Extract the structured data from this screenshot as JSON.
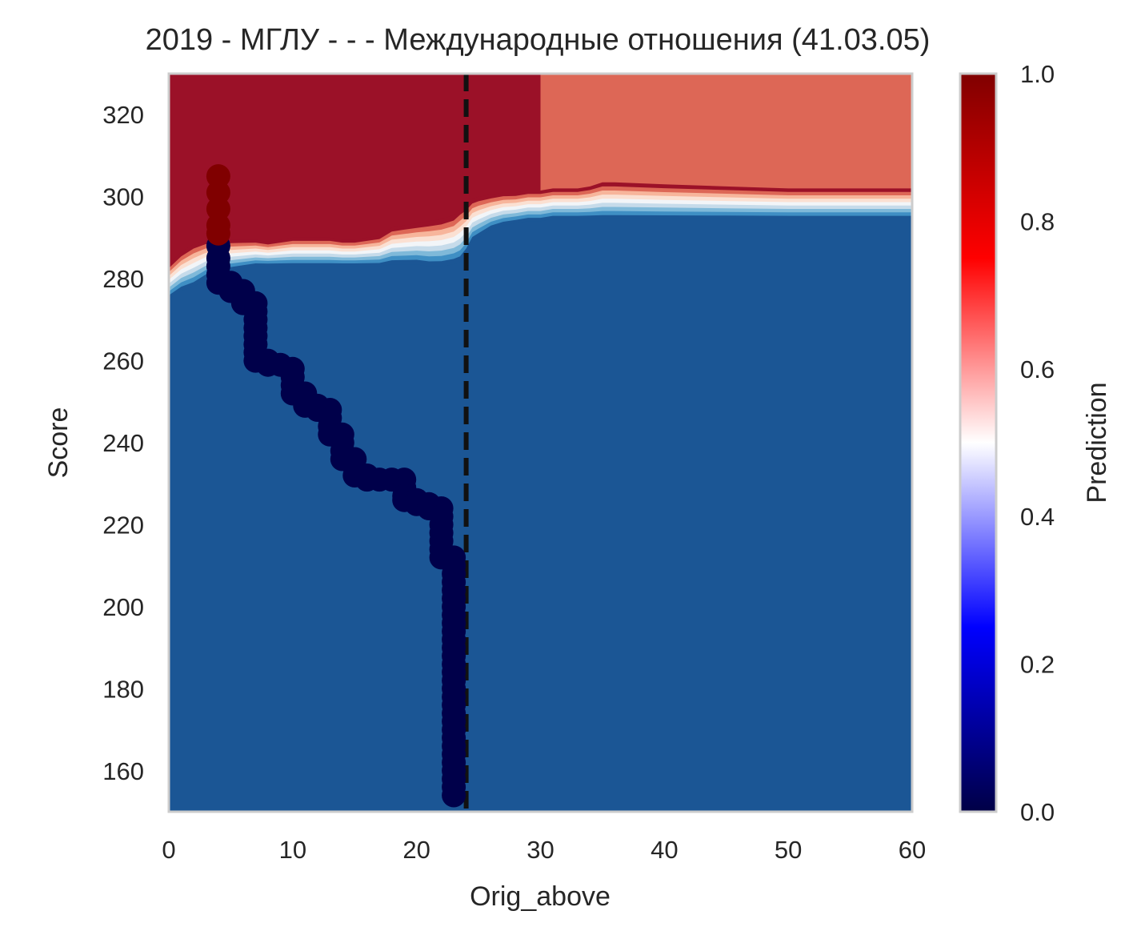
{
  "chart_data": {
    "type": "heatmap",
    "title": "2019 - МГЛУ - - - Международные отношения (41.03.05)",
    "xlabel": "Orig_above",
    "ylabel": "Score",
    "xlim": [
      0,
      60
    ],
    "ylim": [
      150,
      330
    ],
    "x_ticks": [
      "0",
      "10",
      "20",
      "30",
      "40",
      "50",
      "60"
    ],
    "y_ticks": [
      "160",
      "180",
      "200",
      "220",
      "240",
      "260",
      "280",
      "300",
      "320"
    ],
    "grid": false,
    "colorbar": {
      "label": "Prediction",
      "range": [
        0,
        1
      ],
      "ticks": [
        "0.0",
        "0.2",
        "0.4",
        "0.6",
        "0.8",
        "1.0"
      ],
      "colormap": "seismic"
    },
    "threshold_line": {
      "x": 24,
      "style": "dashed",
      "color": "#111111"
    },
    "contour_levels": [
      {
        "level": "0.0-0.1",
        "color": "#1b5695"
      },
      {
        "level": "0.1-0.2",
        "color": "#3f8fc4"
      },
      {
        "level": "0.2-0.3",
        "color": "#7fb9d9"
      },
      {
        "level": "0.3-0.4",
        "color": "#c6dbea"
      },
      {
        "level": "0.4-0.5",
        "color": "#f2f5f8"
      },
      {
        "level": "0.5-0.6",
        "color": "#fbe0d2"
      },
      {
        "level": "0.6-0.7",
        "color": "#f7b59b"
      },
      {
        "level": "0.7-0.8",
        "color": "#dd6756"
      },
      {
        "level": "0.9-1.0",
        "color": "#9b1128"
      }
    ],
    "boundary": {
      "x": [
        0,
        1,
        2,
        3,
        4,
        5,
        6,
        7,
        8,
        9,
        10,
        11,
        12,
        13,
        14,
        15,
        16,
        17,
        18,
        19,
        20,
        21,
        22,
        23,
        23.5,
        24,
        24.5,
        25,
        26,
        27,
        28,
        29,
        30,
        31,
        32,
        33,
        34,
        35,
        36,
        40,
        45,
        50,
        55,
        60
      ],
      "lower": [
        275,
        277,
        278,
        280,
        281,
        282,
        282.5,
        283,
        283,
        283,
        283,
        283,
        283,
        283,
        283,
        283,
        283,
        283,
        283.5,
        283.5,
        283.5,
        283,
        283,
        283.5,
        284,
        286,
        289,
        290,
        292,
        293,
        293.5,
        294,
        294,
        294.5,
        294.5,
        294.5,
        294.5,
        294.5,
        294.5,
        294.5,
        294.5,
        294.5,
        294.5,
        294.5
      ],
      "upper": [
        283.5,
        286.5,
        288.5,
        289.5,
        289.5,
        289.5,
        289.5,
        289.5,
        289,
        289.5,
        290,
        290,
        290,
        290,
        289.5,
        289.5,
        290,
        290.5,
        292.5,
        293,
        293.5,
        294,
        294.5,
        295.5,
        297,
        298,
        299.5,
        300,
        300.5,
        301,
        301,
        301.5,
        301.5,
        302,
        302,
        302,
        302.5,
        303.5,
        303.5,
        303,
        302.5,
        302,
        302,
        302
      ]
    },
    "top_regions": [
      {
        "x_range": [
          0,
          30
        ],
        "color": "#9b1128",
        "value_range": "0.9-1.0"
      },
      {
        "x_range": [
          30,
          60
        ],
        "color": "#dd6756",
        "value_range": "0.7-0.8"
      }
    ],
    "applicants": {
      "rejected_color": "#00004a",
      "admitted_color": "#800000",
      "admitted": [
        [
          4,
          305
        ],
        [
          4,
          301
        ],
        [
          4,
          297
        ],
        [
          4,
          293
        ],
        [
          4,
          291
        ]
      ],
      "rejected": [
        [
          4,
          288
        ],
        [
          4,
          285
        ],
        [
          4,
          283
        ],
        [
          4,
          281
        ],
        [
          4,
          279
        ],
        [
          5,
          279
        ],
        [
          5,
          277
        ],
        [
          6,
          277
        ],
        [
          6,
          276
        ],
        [
          6,
          274
        ],
        [
          7,
          274
        ],
        [
          7,
          272
        ],
        [
          7,
          270
        ],
        [
          7,
          268
        ],
        [
          7,
          266
        ],
        [
          7,
          264
        ],
        [
          7,
          262
        ],
        [
          7,
          260
        ],
        [
          8,
          260
        ],
        [
          8,
          259
        ],
        [
          9,
          259
        ],
        [
          10,
          258
        ],
        [
          10,
          256
        ],
        [
          10,
          254
        ],
        [
          10,
          252
        ],
        [
          11,
          252
        ],
        [
          11,
          250
        ],
        [
          11,
          249
        ],
        [
          12,
          249
        ],
        [
          12,
          248
        ],
        [
          13,
          248
        ],
        [
          13,
          246
        ],
        [
          13,
          244
        ],
        [
          13,
          242
        ],
        [
          14,
          242
        ],
        [
          14,
          240
        ],
        [
          14,
          238
        ],
        [
          14,
          236
        ],
        [
          15,
          236
        ],
        [
          15,
          234
        ],
        [
          15,
          232
        ],
        [
          16,
          232
        ],
        [
          16,
          231
        ],
        [
          17,
          231
        ],
        [
          18,
          231
        ],
        [
          19,
          231
        ],
        [
          19,
          229
        ],
        [
          19,
          227
        ],
        [
          19,
          226
        ],
        [
          20,
          226
        ],
        [
          20,
          225
        ],
        [
          21,
          225
        ],
        [
          21,
          224
        ],
        [
          22,
          224
        ],
        [
          22,
          222
        ],
        [
          22,
          220
        ],
        [
          22,
          218
        ],
        [
          22,
          216
        ],
        [
          22,
          214
        ],
        [
          22,
          212
        ],
        [
          23,
          212
        ],
        [
          23,
          210
        ],
        [
          23,
          208
        ],
        [
          23,
          206
        ],
        [
          23,
          204
        ],
        [
          23,
          202
        ],
        [
          23,
          200
        ],
        [
          23,
          198
        ],
        [
          23,
          196
        ],
        [
          23,
          194
        ],
        [
          23,
          192
        ],
        [
          23,
          190
        ],
        [
          23,
          188
        ],
        [
          23,
          186
        ],
        [
          23,
          184
        ],
        [
          23,
          182
        ],
        [
          23,
          180
        ],
        [
          23,
          178
        ],
        [
          23,
          176
        ],
        [
          23,
          174
        ],
        [
          23,
          172
        ],
        [
          23,
          170
        ],
        [
          23,
          168
        ],
        [
          23,
          166
        ],
        [
          23,
          164
        ],
        [
          23,
          162
        ],
        [
          23,
          160
        ],
        [
          23,
          158
        ],
        [
          23,
          156
        ],
        [
          23,
          154
        ]
      ]
    }
  }
}
